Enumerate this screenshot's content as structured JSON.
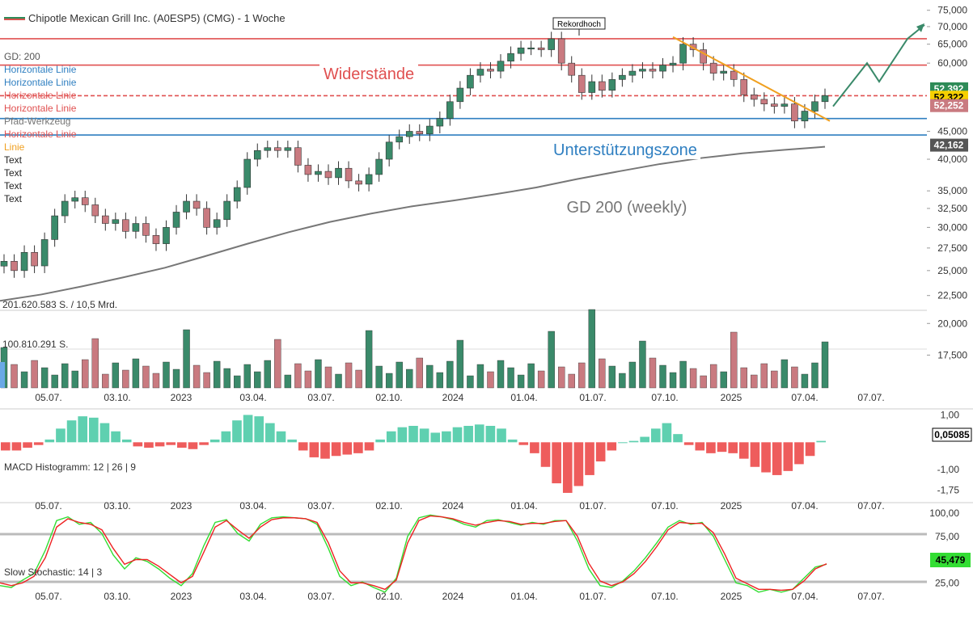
{
  "header": {
    "title": "Chipotle Mexican Grill Inc. (A0ESP5) (CMG) - 1 Woche",
    "legend": [
      {
        "label": "GD: 200",
        "color": "#555555"
      },
      {
        "label": "Horizontale Linie",
        "color": "#2f7fc1"
      },
      {
        "label": "Horizontale Linie",
        "color": "#2f7fc1"
      },
      {
        "label": "Horizontale Linie",
        "color": "#e05050"
      },
      {
        "label": "Horizontale Linie",
        "color": "#e05050"
      },
      {
        "label": "Pfad-Werkzeug",
        "color": "#777777"
      },
      {
        "label": "Horizontale Linie",
        "color": "#e05050"
      },
      {
        "label": "Linie",
        "color": "#f0a020"
      },
      {
        "label": "Text",
        "color": "#222222"
      },
      {
        "label": "Text",
        "color": "#222222"
      },
      {
        "label": "Text",
        "color": "#222222"
      },
      {
        "label": "Text",
        "color": "#222222"
      }
    ]
  },
  "annotations": {
    "resistance": "Widerstände",
    "support": "Unterstützungszone",
    "ma_label": "GD 200 (weekly)",
    "record": "Rekordhoch"
  },
  "price_tags": [
    {
      "text": "52,392",
      "bg": "#2e8b57",
      "fg": "#ffffff"
    },
    {
      "text": "52,322",
      "bg": "#f5d000",
      "fg": "#000000"
    },
    {
      "text": "52,252",
      "bg": "#c97a80",
      "fg": "#ffffff"
    },
    {
      "text": "42,162",
      "bg": "#555555",
      "fg": "#ffffff"
    }
  ],
  "volume_labels": [
    "201.620.583 S. / 10,5 Mrd.",
    "100.810.291 S."
  ],
  "macd_label": "MACD Histogramm: 12 | 26 | 9",
  "macd_tag": "0,05085",
  "stoch_label": "Slow Stochastic: 14 | 3",
  "stoch_tag": "45,479",
  "colors": {
    "up": "#3a8a6a",
    "down": "#c97a80",
    "macd_pos": "#5fd0b0",
    "macd_neg": "#ee5c5c",
    "resistance": "#e05050",
    "support": "#2f7fc1",
    "trend": "#f0a020",
    "path": "#3a8a6a",
    "ma": "#777777"
  },
  "chart_data": [
    {
      "type": "candlestick",
      "title": "Chipotle Mexican Grill Inc. (A0ESP5) (CMG) - 1 Woche",
      "x_ticks": [
        "05.07.",
        "03.10.",
        "2023",
        "03.04.",
        "03.07.",
        "02.10.",
        "2024",
        "01.04.",
        "01.07.",
        "07.10.",
        "2025",
        "07.04.",
        "07.07."
      ],
      "y_ticks": [
        "75,000",
        "70,000",
        "65,000",
        "60,000",
        "45,000",
        "40,000",
        "35,000",
        "32,500",
        "30,000",
        "27,500",
        "25,000",
        "22,500",
        "20,000",
        "17,500"
      ],
      "scale": "log",
      "ylim": [
        15500,
        77000
      ],
      "close_series": [
        26000,
        25000,
        27000,
        25500,
        28500,
        31500,
        33500,
        34000,
        33000,
        31500,
        30500,
        31000,
        29500,
        30500,
        29000,
        28000,
        30000,
        32000,
        33500,
        32500,
        30000,
        31000,
        33500,
        35500,
        40000,
        41500,
        42000,
        41500,
        42000,
        39000,
        37500,
        38000,
        37000,
        38500,
        36500,
        36000,
        37500,
        40000,
        43000,
        44000,
        45000,
        44500,
        46000,
        47500,
        51000,
        54000,
        57000,
        58500,
        58000,
        60500,
        62500,
        64000,
        64000,
        63500,
        66500,
        60000,
        57000,
        53000,
        55500,
        53500,
        56000,
        57000,
        58000,
        58500,
        58000,
        59500,
        60000,
        65000,
        63500,
        60000,
        57500,
        58000,
        56000,
        52500,
        51500,
        50500,
        50000,
        50500,
        47000,
        49000,
        51000,
        52322
      ],
      "ma200_series": [
        22000,
        22600,
        23400,
        24300,
        25300,
        26600,
        28000,
        29400,
        30700,
        31800,
        32800,
        33600,
        34500,
        35500,
        36800,
        38000,
        39200,
        40200,
        41000,
        41600,
        42162
      ],
      "resistance_levels": [
        66500,
        59500,
        52300
      ],
      "support_levels": [
        47500,
        44300
      ],
      "projected_path": [
        50000,
        60000,
        55500,
        66500,
        70500
      ],
      "volume_axis_labels": [
        "201.620.583 S. / 10,5 Mrd.",
        "100.810.291 S."
      ],
      "last_values": {
        "high": 52.392,
        "last": 52.322,
        "low": 52.252,
        "ma200": 42.162
      }
    },
    {
      "type": "bar",
      "title": "MACD Histogramm: 12 | 26 | 9",
      "y_ticks": [
        "1,00",
        "-1,00",
        "-1,75"
      ],
      "ylim": [
        -2.0,
        1.25
      ],
      "values": [
        -0.3,
        -0.3,
        -0.2,
        -0.1,
        0.1,
        0.5,
        0.8,
        0.95,
        0.9,
        0.7,
        0.4,
        0.1,
        -0.15,
        -0.2,
        -0.15,
        -0.1,
        -0.2,
        -0.25,
        -0.1,
        0.1,
        0.4,
        0.8,
        1.0,
        0.95,
        0.7,
        0.4,
        0.1,
        -0.3,
        -0.55,
        -0.6,
        -0.5,
        -0.45,
        -0.4,
        -0.3,
        0.1,
        0.4,
        0.55,
        0.6,
        0.5,
        0.35,
        0.4,
        0.55,
        0.6,
        0.65,
        0.6,
        0.5,
        0.1,
        -0.1,
        -0.4,
        -0.9,
        -1.5,
        -1.85,
        -1.6,
        -1.2,
        -0.7,
        -0.3,
        0.0,
        0.05,
        0.2,
        0.5,
        0.7,
        0.3,
        -0.1,
        -0.3,
        -0.4,
        -0.35,
        -0.4,
        -0.6,
        -0.9,
        -1.1,
        -1.2,
        -1.05,
        -0.8,
        -0.5,
        0.05
      ]
    },
    {
      "type": "line",
      "title": "Slow Stochastic: 14 | 3",
      "y_ticks": [
        "100,00",
        "75,00",
        "25,00"
      ],
      "ylim": [
        0,
        100
      ],
      "series": [
        {
          "values": [
            22,
            20,
            28,
            35,
            60,
            92,
            96,
            88,
            90,
            78,
            55,
            40,
            52,
            48,
            40,
            30,
            22,
            35,
            65,
            90,
            93,
            78,
            70,
            88,
            95,
            96,
            95,
            94,
            88,
            62,
            32,
            22,
            26,
            20,
            15,
            30,
            75,
            95,
            98,
            96,
            93,
            88,
            85,
            92,
            93,
            90,
            87,
            90,
            88,
            92,
            92,
            70,
            40,
            22,
            20,
            27,
            38,
            52,
            68,
            85,
            92,
            88,
            90,
            75,
            50,
            25,
            22,
            15,
            18,
            15,
            18,
            30,
            42,
            45
          ]
        },
        {
          "values": [
            25,
            22,
            25,
            32,
            52,
            85,
            94,
            90,
            88,
            82,
            62,
            45,
            50,
            50,
            43,
            34,
            25,
            32,
            58,
            85,
            92,
            82,
            73,
            85,
            93,
            95,
            95,
            94,
            90,
            68,
            38,
            25,
            25,
            22,
            18,
            28,
            68,
            92,
            97,
            96,
            94,
            90,
            87,
            90,
            92,
            91,
            88,
            89,
            89,
            91,
            92,
            75,
            46,
            27,
            22,
            26,
            35,
            48,
            64,
            82,
            90,
            89,
            89,
            79,
            56,
            30,
            24,
            18,
            18,
            17,
            18,
            27,
            40,
            45.479
          ]
        }
      ]
    }
  ]
}
